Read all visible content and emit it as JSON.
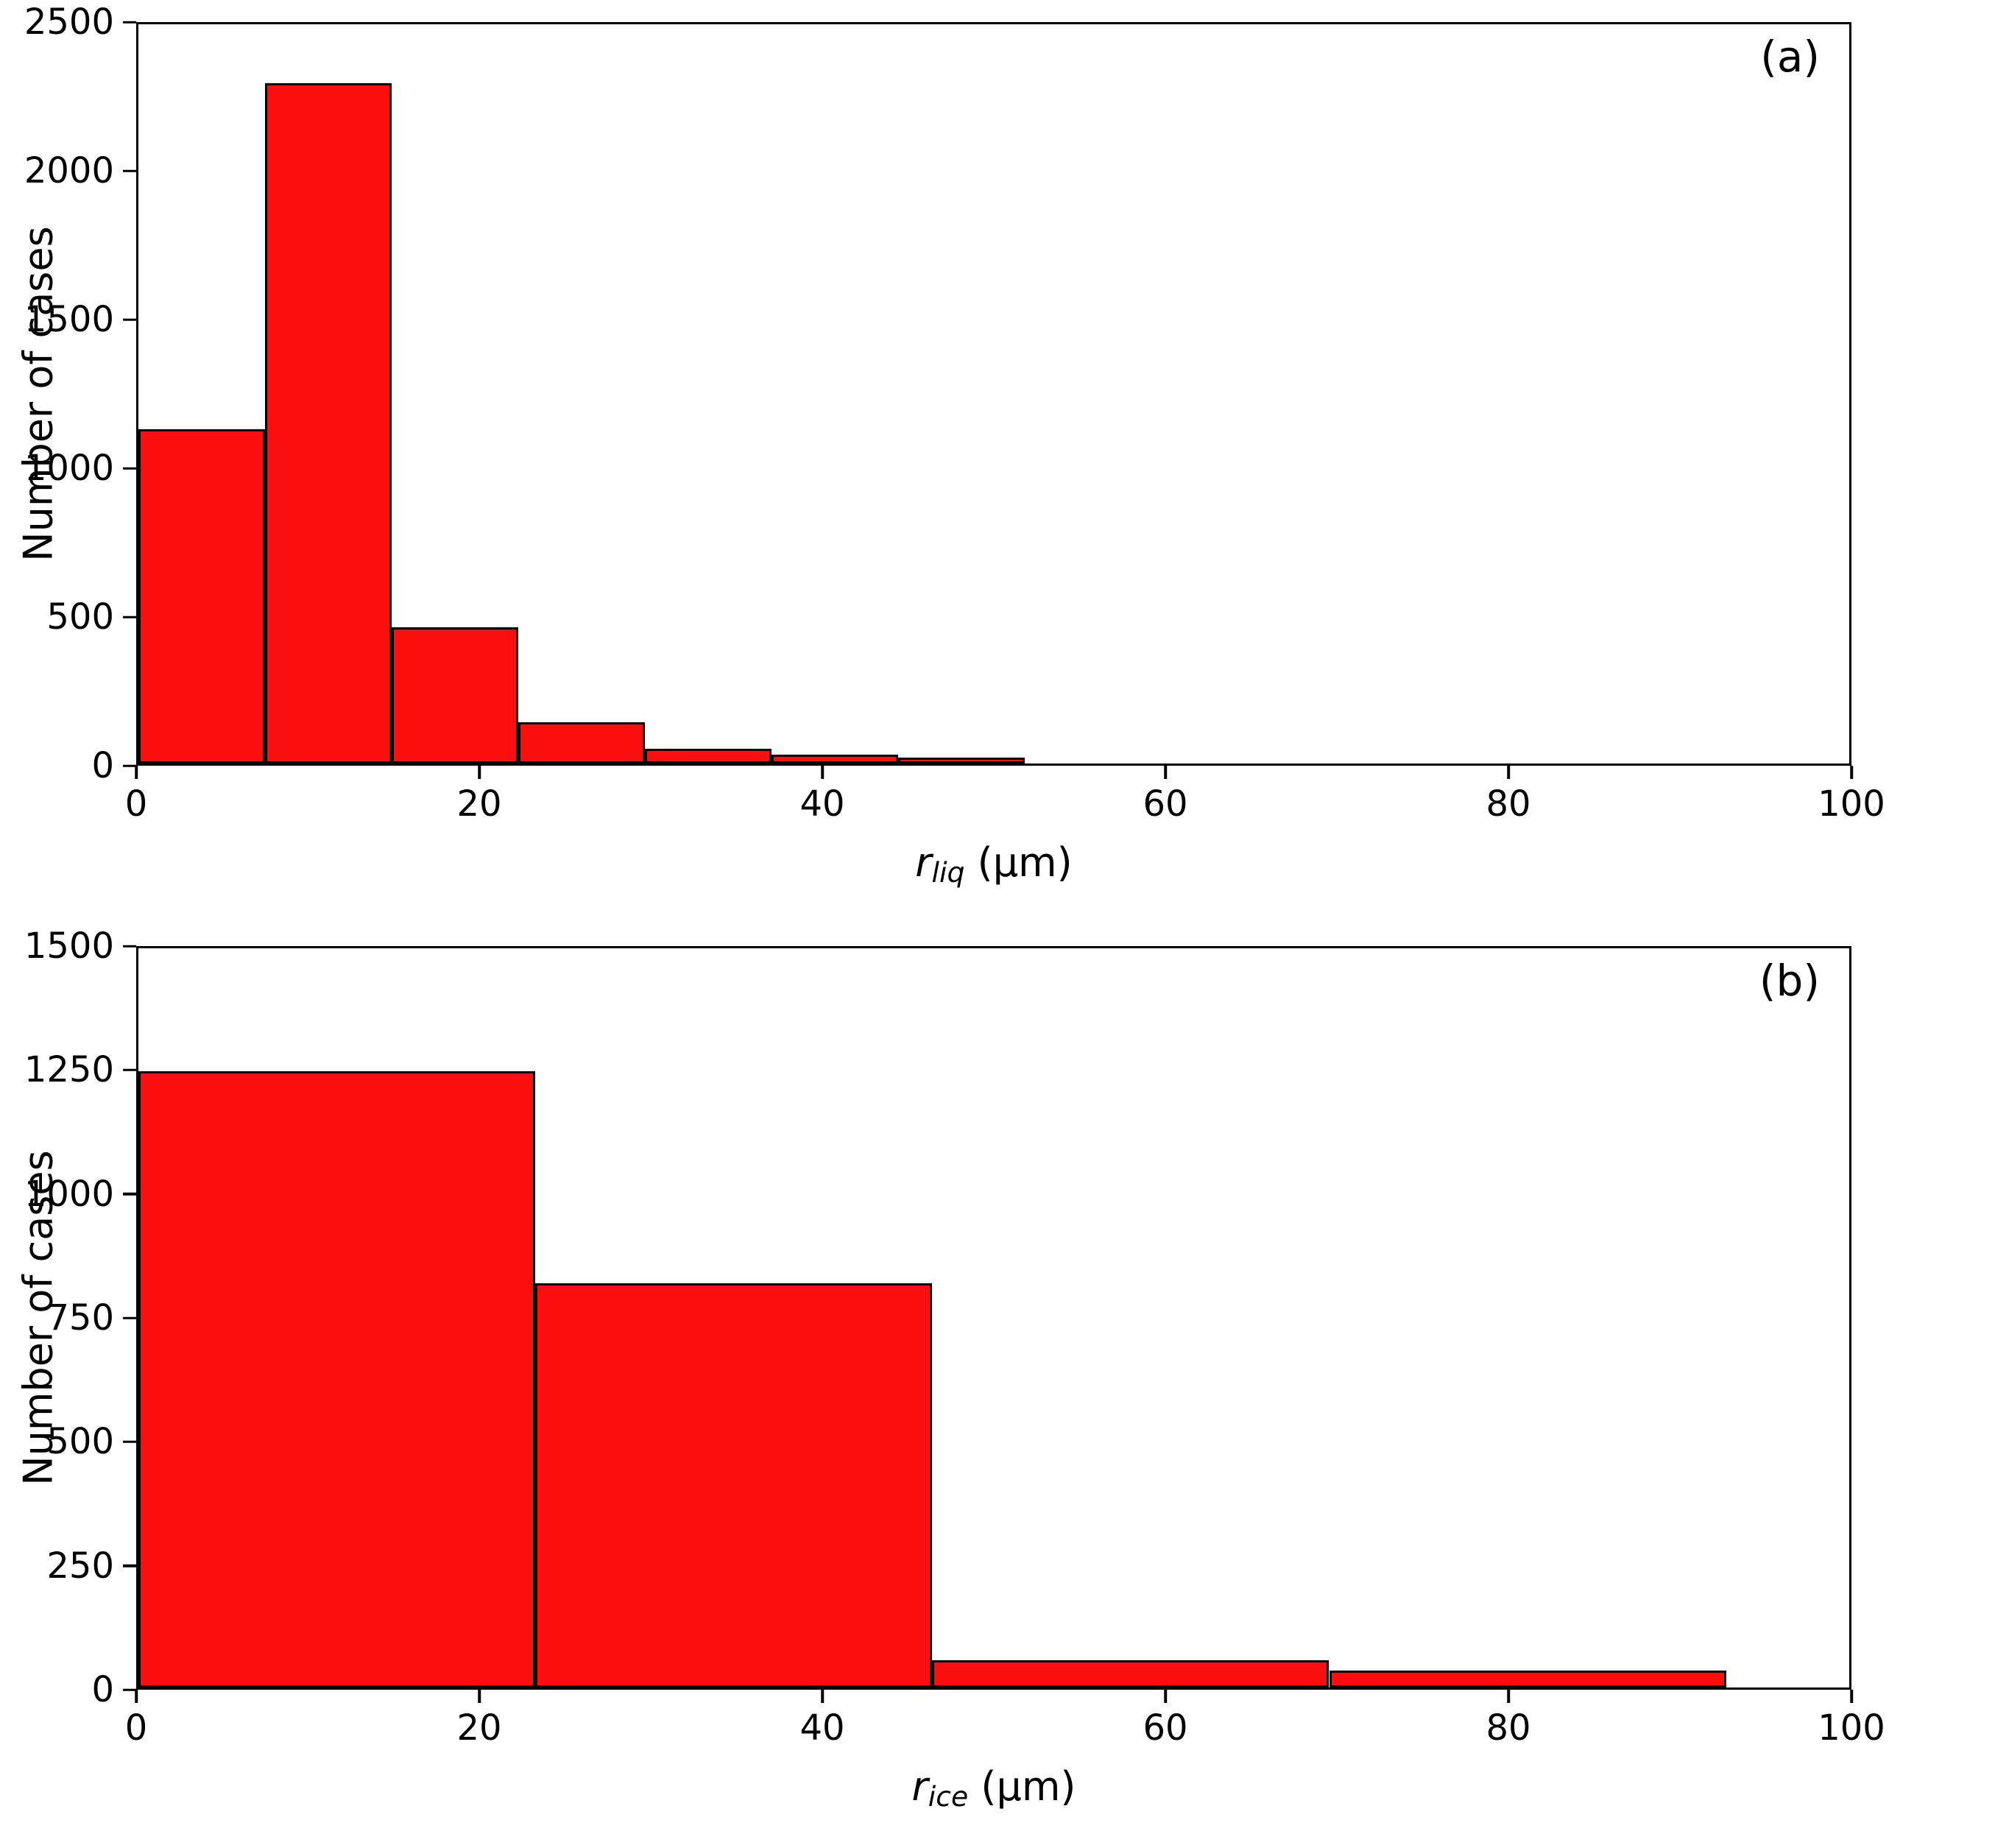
{
  "figure": {
    "background": "#ffffff",
    "bar_color": "#fb0f0f",
    "bar_edge_color": "#000000"
  },
  "chart_data": [
    {
      "type": "bar",
      "panel_label": "(a)",
      "title": "",
      "ylabel": "Number of cases",
      "xlabel": {
        "var": "r",
        "sub": "liq",
        "unit": " (μm)"
      },
      "xlim": [
        0,
        100
      ],
      "ylim": [
        0,
        2500
      ],
      "xticks": [
        0,
        20,
        40,
        60,
        80,
        100
      ],
      "yticks": [
        0,
        500,
        1000,
        1500,
        2000,
        2500
      ],
      "grid": false,
      "legend": null,
      "bar_color": "#fb0f0f",
      "bar_edge_color": "#000000",
      "bins": [
        {
          "x0": 0.0,
          "x1": 7.4,
          "count": 1130
        },
        {
          "x0": 7.4,
          "x1": 14.8,
          "count": 2300
        },
        {
          "x0": 14.8,
          "x1": 22.2,
          "count": 460
        },
        {
          "x0": 22.2,
          "x1": 29.6,
          "count": 140
        },
        {
          "x0": 29.6,
          "x1": 37.0,
          "count": 50
        },
        {
          "x0": 37.0,
          "x1": 44.4,
          "count": 30
        },
        {
          "x0": 44.4,
          "x1": 51.8,
          "count": 20
        }
      ]
    },
    {
      "type": "bar",
      "panel_label": "(b)",
      "title": "",
      "ylabel": "Number of cases",
      "xlabel": {
        "var": "r",
        "sub": "ice",
        "unit": " (μm)"
      },
      "xlim": [
        0,
        100
      ],
      "ylim": [
        0,
        1500
      ],
      "xticks": [
        0,
        20,
        40,
        60,
        80,
        100
      ],
      "yticks": [
        0,
        250,
        500,
        750,
        1000,
        1250,
        1500
      ],
      "grid": false,
      "legend": null,
      "bar_color": "#fb0f0f",
      "bar_edge_color": "#000000",
      "bins": [
        {
          "x0": 0.0,
          "x1": 23.2,
          "count": 1250
        },
        {
          "x0": 23.2,
          "x1": 46.4,
          "count": 820
        },
        {
          "x0": 46.4,
          "x1": 69.6,
          "count": 55
        },
        {
          "x0": 69.6,
          "x1": 92.8,
          "count": 35
        }
      ]
    }
  ]
}
